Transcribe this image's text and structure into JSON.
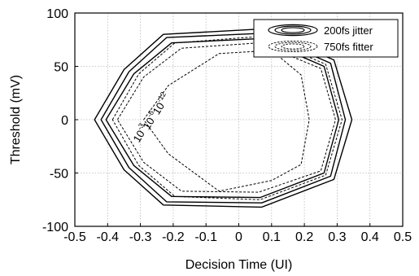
{
  "chart_data": {
    "type": "line",
    "xlabel": "Decision Time (UI)",
    "ylabel": "Threshold (mV)",
    "xlim": [
      -0.5,
      0.5
    ],
    "ylim": [
      -100,
      100
    ],
    "xticks": [
      -0.5,
      -0.4,
      -0.3,
      -0.2,
      -0.1,
      0,
      0.1,
      0.2,
      0.3,
      0.4,
      0.5
    ],
    "xtick_labels": [
      "-0.5",
      "-0.4",
      "-0.3",
      "-0.2",
      "-0.1",
      "0",
      "0.1",
      "0.2",
      "0.3",
      "0.4",
      "0.5"
    ],
    "yticks": [
      100,
      50,
      0,
      -50,
      -100
    ],
    "ytick_labels": [
      "100",
      "50",
      "0",
      "-50",
      "-100"
    ],
    "grid": true,
    "legend_position": "top-right",
    "legend": [
      {
        "label": "200fs jitter",
        "style": "solid"
      },
      {
        "label": "750fs fitter",
        "style": "dashed"
      }
    ],
    "annotations": [
      {
        "base": "10",
        "exp": "-3",
        "x": -0.305,
        "y": -22
      },
      {
        "base": "10",
        "exp": "-6",
        "x": -0.275,
        "y": -10
      },
      {
        "base": "10",
        "exp": "-12",
        "x": -0.245,
        "y": 4
      }
    ],
    "series": [
      {
        "style": "solid",
        "x": [
          -0.44,
          -0.35,
          -0.23,
          0.07,
          0.29,
          0.345,
          0.29,
          0.07,
          -0.23,
          -0.35,
          -0.44
        ],
        "y": [
          0,
          47,
          80,
          85,
          56,
          0,
          -56,
          -82,
          -80,
          -47,
          0
        ]
      },
      {
        "style": "solid",
        "x": [
          -0.42,
          -0.335,
          -0.22,
          0.07,
          0.28,
          0.325,
          0.28,
          0.07,
          -0.22,
          -0.335,
          -0.42
        ],
        "y": [
          0,
          45,
          77,
          81,
          53,
          0,
          -53,
          -78,
          -77,
          -45,
          0
        ]
      },
      {
        "style": "solid",
        "x": [
          -0.405,
          -0.32,
          -0.205,
          0.065,
          0.26,
          0.305,
          0.26,
          0.065,
          -0.205,
          -0.32,
          -0.405
        ],
        "y": [
          0,
          43,
          72,
          76,
          50,
          0,
          -50,
          -73,
          -72,
          -43,
          0
        ]
      },
      {
        "style": "dashed",
        "x": [
          -0.385,
          -0.305,
          -0.195,
          0.065,
          0.265,
          0.315,
          0.265,
          0.065,
          -0.195,
          -0.305,
          -0.385
        ],
        "y": [
          0,
          43,
          72,
          78,
          52,
          0,
          -52,
          -75,
          -72,
          -43,
          0
        ]
      },
      {
        "style": "dashed",
        "x": [
          -0.37,
          -0.29,
          -0.175,
          0.06,
          0.25,
          0.295,
          0.25,
          0.06,
          -0.175,
          -0.29,
          -0.37
        ],
        "y": [
          0,
          40,
          67,
          72,
          48,
          0,
          -48,
          -68,
          -67,
          -40,
          0
        ]
      },
      {
        "style": "dashed",
        "x": [
          -0.29,
          -0.215,
          -0.06,
          0.1,
          0.19,
          0.215,
          0.19,
          0.1,
          -0.06,
          -0.215,
          -0.29
        ],
        "y": [
          0,
          32,
          62,
          65,
          42,
          0,
          -42,
          -57,
          -67,
          -32,
          0
        ]
      }
    ]
  }
}
